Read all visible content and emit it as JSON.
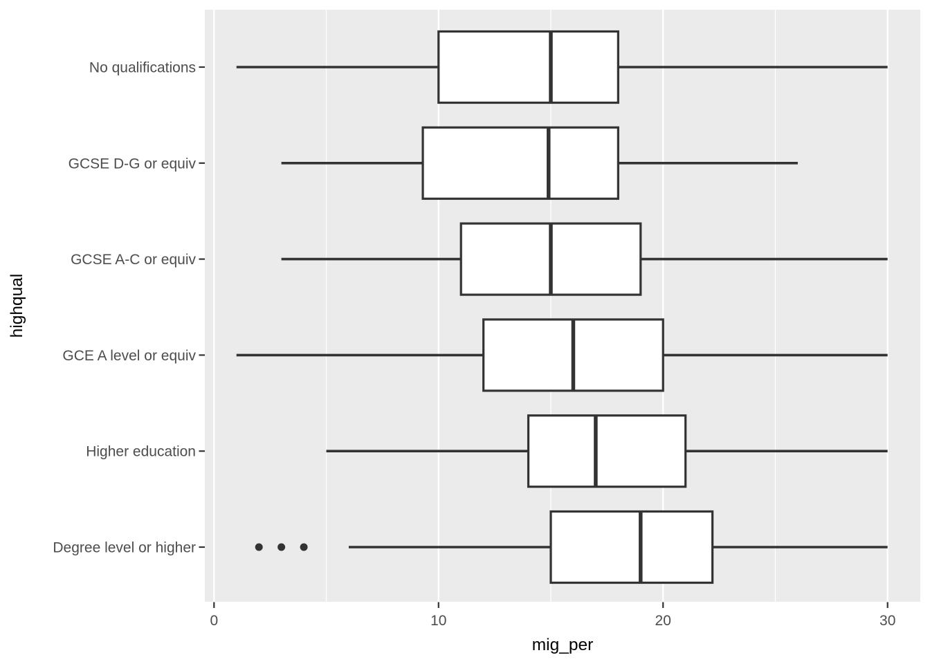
{
  "chart_data": {
    "type": "boxplot",
    "orientation": "horizontal",
    "title": "",
    "xlabel": "mig_per",
    "ylabel": "highqual",
    "x_ticks": [
      0,
      10,
      20,
      30
    ],
    "x_tick_labels": [
      "0",
      "10",
      "20",
      "30"
    ],
    "x_minor_ticks": [
      5,
      15,
      25
    ],
    "xlim": [
      -0.4,
      31.5
    ],
    "grid": "white major and minor gridlines on gray panel",
    "legend_position": "none",
    "categories_top_to_bottom": [
      "No qualifications",
      "GCSE D-G or equiv",
      "GCSE A-C or equiv",
      "GCE A level or equiv",
      "Higher education",
      "Degree level or higher"
    ],
    "series": [
      {
        "label": "No qualifications",
        "whisker_low": 1,
        "q1": 10,
        "median": 15,
        "q3": 18,
        "whisker_high": 30,
        "outliers": []
      },
      {
        "label": "GCSE D-G or equiv",
        "whisker_low": 3,
        "q1": 9.3,
        "median": 14.9,
        "q3": 18,
        "whisker_high": 26,
        "outliers": []
      },
      {
        "label": "GCSE A-C or equiv",
        "whisker_low": 3,
        "q1": 11,
        "median": 15,
        "q3": 19,
        "whisker_high": 30,
        "outliers": []
      },
      {
        "label": "GCE A level or equiv",
        "whisker_low": 1,
        "q1": 12,
        "median": 16,
        "q3": 20,
        "whisker_high": 30,
        "outliers": []
      },
      {
        "label": "Higher education",
        "whisker_low": 5,
        "q1": 14,
        "median": 17,
        "q3": 21,
        "whisker_high": 30,
        "outliers": []
      },
      {
        "label": "Degree level or higher",
        "whisker_low": 6,
        "q1": 15,
        "median": 19,
        "q3": 22.2,
        "whisker_high": 30,
        "outliers": [
          2,
          3,
          4
        ]
      }
    ]
  },
  "colors": {
    "page_background": "#FFFFFF",
    "panel_background": "#EBEBEB",
    "grid_line": "#FFFFFF",
    "box_stroke": "#333333",
    "box_fill": "#FFFFFF",
    "median_stroke": "#333333",
    "outlier_fill": "#333333",
    "axis_text": "#4D4D4D",
    "axis_title": "#000000",
    "tick_mark": "#333333"
  }
}
